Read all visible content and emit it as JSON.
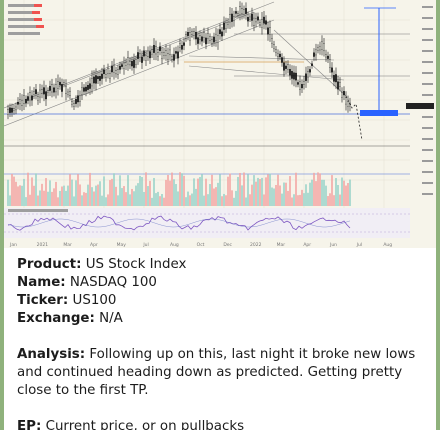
{
  "message": {
    "product_label": "Product:",
    "product_value": "US Stock Index",
    "name_label": "Name:",
    "name_value": "NASDAQ 100",
    "ticker_label": "Ticker:",
    "ticker_value": "US100",
    "exchange_label": "Exchange:",
    "exchange_value": "N/A",
    "analysis_label": "Analysis:",
    "analysis_value": "Following up on this, last night it broke new lows and continued heading down as predicted. Getting pretty close to the first TP.",
    "ep_label": "EP:",
    "ep_value": "Current price, or on pullbacks"
  },
  "chart": {
    "x_ticks": [
      "Jan",
      "2021",
      "Mar",
      "Apr",
      "May",
      "Jul",
      "Aug",
      "Oct",
      "Dec",
      "2022",
      "Mar",
      "Apr",
      "Jun",
      "Jul",
      "Aug"
    ],
    "colors": {
      "background": "#f6f4ea",
      "up": "#26a69a",
      "down": "#ef5350",
      "candle": "#111111",
      "accent_blue": "#2962ff",
      "rsi": "#7e57c2"
    }
  }
}
